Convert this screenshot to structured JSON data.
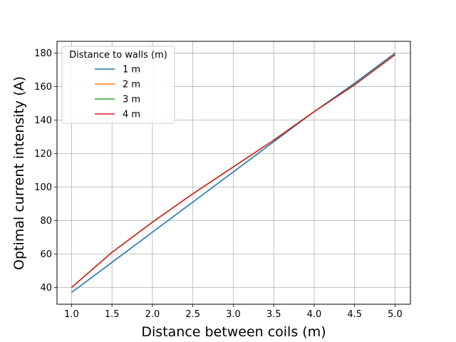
{
  "chart_data": {
    "type": "line",
    "title": "",
    "xlabel": "Distance between coils (m)",
    "ylabel": "Optimal current intensity (A)",
    "xlim": [
      0.82,
      5.19
    ],
    "ylim": [
      30,
      187
    ],
    "xticks": [
      1.0,
      1.5,
      2.0,
      2.5,
      3.0,
      3.5,
      4.0,
      4.5,
      5.0
    ],
    "xtick_labels": [
      "1.0",
      "1.5",
      "2.0",
      "2.5",
      "3.0",
      "3.5",
      "4.0",
      "4.5",
      "5.0"
    ],
    "yticks": [
      40,
      60,
      80,
      100,
      120,
      140,
      160,
      180
    ],
    "ytick_labels": [
      "40",
      "60",
      "80",
      "100",
      "120",
      "140",
      "160",
      "180"
    ],
    "grid": true,
    "legend": {
      "title": "Distance to walls (m)",
      "placement": "upper-left"
    },
    "series": [
      {
        "name": "1 m",
        "color": "#1f77b4",
        "x": [
          1.0,
          1.5,
          2.0,
          2.5,
          3.0,
          3.5,
          4.0,
          4.5,
          5.0
        ],
        "y": [
          37,
          55,
          73,
          91,
          109,
          127,
          145,
          162,
          180
        ]
      },
      {
        "name": "2 m",
        "color": "#ff7f0e",
        "x": [
          1.0,
          1.5,
          2.0,
          2.5,
          3.0,
          3.5,
          4.0,
          4.5,
          5.0
        ],
        "y": [
          40,
          61,
          79,
          96,
          112,
          128,
          145,
          161,
          179
        ]
      },
      {
        "name": "3 m",
        "color": "#2ca02c",
        "x": [
          1.0,
          1.5,
          2.0,
          2.5,
          3.0,
          3.5,
          4.0,
          4.5,
          5.0
        ],
        "y": [
          40,
          61,
          79,
          96,
          112,
          128,
          145,
          161,
          179
        ]
      },
      {
        "name": "4 m",
        "color": "#d62728",
        "x": [
          1.0,
          1.5,
          2.0,
          2.5,
          3.0,
          3.5,
          4.0,
          4.5,
          5.0
        ],
        "y": [
          40,
          61,
          79,
          96,
          112,
          128,
          145,
          161,
          179
        ]
      }
    ]
  }
}
